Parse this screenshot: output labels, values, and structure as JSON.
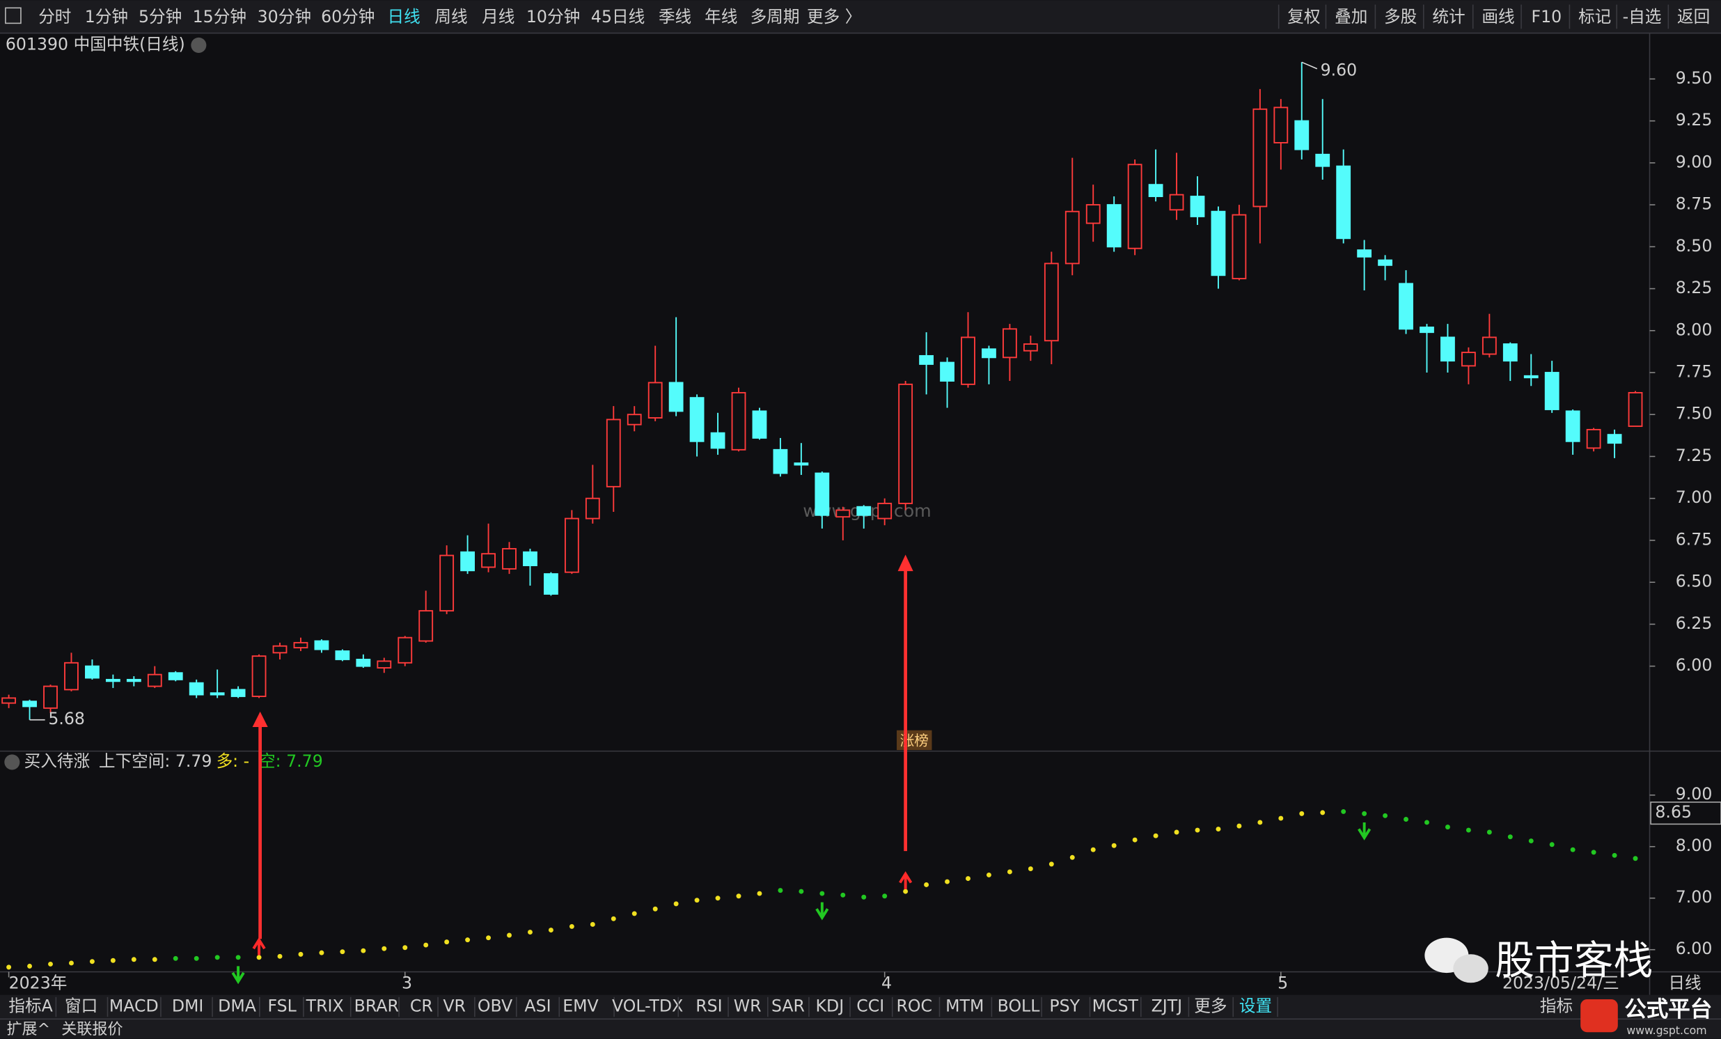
{
  "toolbar": {
    "left": [
      "分时",
      "1分钟",
      "5分钟",
      "15分钟",
      "30分钟",
      "60分钟",
      "日线",
      "周线",
      "月线",
      "10分钟",
      "45日线",
      "季线",
      "年线",
      "多周期",
      "更多 〉"
    ],
    "selected": "日线",
    "right": [
      "复权",
      "叠加",
      "多股",
      "统计",
      "画线",
      "F10",
      "标记",
      "-自选",
      "返回"
    ]
  },
  "header": {
    "title": "601390 中国中铁(日线)"
  },
  "watermark": "www.gspt.com",
  "tag": "涨榜",
  "chart_data": [
    {
      "type": "candlestick",
      "up_color": "#ff3b3b",
      "down_color": "#54fcfc",
      "high_label": "9.60",
      "low_label": "5.68",
      "categories": [
        "2023年",
        null,
        null,
        null,
        null,
        null,
        null,
        null,
        null,
        null,
        null,
        null,
        null,
        null,
        null,
        null,
        null,
        null,
        null,
        "3",
        null,
        null,
        null,
        null,
        null,
        null,
        null,
        null,
        null,
        null,
        null,
        null,
        null,
        null,
        null,
        null,
        null,
        null,
        null,
        null,
        null,
        null,
        "4",
        null,
        null,
        null,
        null,
        null,
        null,
        null,
        null,
        null,
        null,
        null,
        null,
        null,
        null,
        null,
        null,
        null,
        null,
        "5",
        null,
        null,
        null,
        null,
        null,
        null,
        null,
        null,
        null,
        null,
        null,
        null,
        null,
        null,
        null,
        null,
        null
      ],
      "open": [
        5.78,
        5.79,
        5.75,
        5.86,
        6.0,
        5.92,
        5.92,
        5.88,
        5.96,
        5.9,
        5.84,
        5.86,
        5.82,
        6.08,
        6.11,
        6.15,
        6.09,
        6.04,
        5.99,
        6.02,
        6.15,
        6.33,
        6.68,
        6.59,
        6.58,
        6.68,
        6.55,
        6.56,
        6.88,
        7.07,
        7.44,
        7.48,
        7.69,
        7.6,
        7.39,
        7.29,
        7.52,
        7.29,
        7.21,
        7.15,
        6.89,
        6.95,
        6.88,
        6.97,
        7.85,
        7.81,
        7.68,
        7.89,
        7.84,
        7.88,
        7.94,
        8.4,
        8.64,
        8.75,
        8.49,
        8.87,
        8.72,
        8.8,
        8.71,
        8.31,
        8.74,
        9.12,
        9.25,
        9.05,
        8.98,
        8.48,
        8.42,
        8.28,
        8.02,
        7.96,
        7.79,
        7.86,
        7.92,
        7.73,
        7.75,
        7.52,
        7.3,
        7.38,
        7.43
      ],
      "high": [
        5.83,
        5.8,
        5.89,
        6.08,
        6.04,
        5.95,
        5.94,
        6.0,
        5.97,
        5.92,
        5.98,
        5.88,
        6.07,
        6.14,
        6.17,
        6.16,
        6.1,
        6.07,
        6.05,
        6.18,
        6.45,
        6.72,
        6.78,
        6.85,
        6.74,
        6.7,
        6.56,
        6.93,
        7.2,
        7.55,
        7.55,
        7.91,
        8.08,
        7.62,
        7.51,
        7.66,
        7.54,
        7.36,
        7.33,
        7.16,
        6.95,
        6.96,
        7.0,
        7.7,
        7.99,
        7.84,
        8.11,
        7.91,
        8.04,
        7.97,
        8.47,
        9.03,
        8.87,
        8.8,
        9.02,
        9.08,
        9.06,
        8.92,
        8.74,
        8.75,
        9.44,
        9.38,
        9.6,
        9.38,
        9.08,
        8.54,
        8.45,
        8.36,
        8.04,
        8.04,
        7.9,
        8.1,
        7.93,
        7.86,
        7.82,
        7.53,
        7.42,
        7.41,
        7.64
      ],
      "low": [
        5.75,
        5.68,
        5.72,
        5.85,
        5.92,
        5.87,
        5.88,
        5.87,
        5.91,
        5.81,
        5.81,
        5.81,
        5.81,
        6.04,
        6.09,
        6.08,
        6.03,
        5.99,
        5.96,
        6.0,
        6.14,
        6.31,
        6.55,
        6.56,
        6.55,
        6.48,
        6.42,
        6.55,
        6.85,
        6.92,
        7.4,
        7.46,
        7.49,
        7.25,
        7.26,
        7.28,
        7.35,
        7.13,
        7.14,
        6.82,
        6.75,
        6.82,
        6.84,
        6.93,
        7.62,
        7.54,
        7.66,
        7.68,
        7.7,
        7.82,
        7.8,
        8.33,
        8.53,
        8.47,
        8.45,
        8.77,
        8.66,
        8.63,
        8.25,
        8.3,
        8.52,
        8.96,
        9.02,
        8.9,
        8.52,
        8.24,
        8.3,
        7.98,
        7.75,
        7.75,
        7.68,
        7.84,
        7.7,
        7.67,
        7.51,
        7.26,
        7.28,
        7.24,
        7.43
      ],
      "close": [
        5.81,
        5.76,
        5.88,
        6.02,
        5.93,
        5.91,
        5.91,
        5.95,
        5.92,
        5.83,
        5.83,
        5.82,
        6.06,
        6.12,
        6.14,
        6.1,
        6.04,
        6.0,
        6.03,
        6.17,
        6.33,
        6.66,
        6.57,
        6.67,
        6.7,
        6.6,
        6.43,
        6.88,
        7.0,
        7.47,
        7.5,
        7.69,
        7.52,
        7.34,
        7.3,
        7.63,
        7.36,
        7.15,
        7.2,
        6.9,
        6.93,
        6.9,
        6.97,
        7.68,
        7.8,
        7.7,
        7.96,
        7.84,
        8.01,
        7.92,
        8.4,
        8.71,
        8.75,
        8.5,
        8.99,
        8.8,
        8.81,
        8.68,
        8.33,
        8.69,
        9.32,
        9.33,
        9.08,
        8.98,
        8.55,
        8.44,
        8.39,
        8.01,
        7.99,
        7.82,
        7.87,
        7.96,
        7.82,
        7.72,
        7.53,
        7.34,
        7.41,
        7.33,
        7.63
      ],
      "ylim": [
        5.5,
        9.76
      ],
      "yticks": [
        {
          "value": 6,
          "label": "6.00"
        },
        {
          "value": 6.25,
          "label": "6.25"
        },
        {
          "value": 6.5,
          "label": "6.50"
        },
        {
          "value": 6.75,
          "label": "6.75"
        },
        {
          "value": 7,
          "label": "7.00"
        },
        {
          "value": 7.25,
          "label": "7.25"
        },
        {
          "value": 7.5,
          "label": "7.50"
        },
        {
          "value": 7.75,
          "label": "7.75"
        },
        {
          "value": 8,
          "label": "8.00"
        },
        {
          "value": 8.25,
          "label": "8.25"
        },
        {
          "value": 8.5,
          "label": "8.50"
        },
        {
          "value": 8.75,
          "label": "8.75"
        },
        {
          "value": 9,
          "label": "9.00"
        },
        {
          "value": 9.25,
          "label": "9.25"
        },
        {
          "value": 9.5,
          "label": "9.50"
        }
      ]
    },
    {
      "type": "dots",
      "title": "买入待涨",
      "space": "上下空间: 7.79",
      "long": "多: -",
      "short": "空: 7.79",
      "values": [
        5.66,
        5.68,
        5.72,
        5.74,
        5.77,
        5.79,
        5.81,
        5.81,
        5.83,
        5.83,
        5.85,
        5.85,
        5.85,
        5.87,
        5.91,
        5.94,
        5.96,
        5.98,
        6.02,
        6.04,
        6.09,
        6.15,
        6.19,
        6.23,
        6.28,
        6.34,
        6.38,
        6.45,
        6.49,
        6.6,
        6.7,
        6.79,
        6.89,
        6.96,
        7.0,
        7.04,
        7.09,
        7.15,
        7.13,
        7.09,
        7.06,
        7.02,
        7.04,
        7.13,
        7.26,
        7.32,
        7.38,
        7.45,
        7.51,
        7.57,
        7.66,
        7.79,
        7.94,
        8.02,
        8.13,
        8.21,
        8.28,
        8.32,
        8.34,
        8.4,
        8.47,
        8.55,
        8.64,
        8.66,
        8.68,
        8.64,
        8.6,
        8.53,
        8.47,
        8.38,
        8.32,
        8.28,
        8.19,
        8.11,
        8.04,
        7.94,
        7.89,
        7.83,
        7.77
      ],
      "colors": [
        "#f0e020",
        "#f0e020",
        "#f0e020",
        "#f0e020",
        "#f0e020",
        "#f0e020",
        "#f0e020",
        "#f0e020",
        "#22c822",
        "#22c822",
        "#22c822",
        "#22c822",
        "#f0e020",
        "#f0e020",
        "#f0e020",
        "#f0e020",
        "#f0e020",
        "#f0e020",
        "#f0e020",
        "#f0e020",
        "#f0e020",
        "#f0e020",
        "#f0e020",
        "#f0e020",
        "#f0e020",
        "#f0e020",
        "#f0e020",
        "#f0e020",
        "#f0e020",
        "#f0e020",
        "#f0e020",
        "#f0e020",
        "#f0e020",
        "#f0e020",
        "#f0e020",
        "#f0e020",
        "#f0e020",
        "#22c822",
        "#22c822",
        "#22c822",
        "#22c822",
        "#22c822",
        "#22c822",
        "#f0e020",
        "#f0e020",
        "#f0e020",
        "#f0e020",
        "#f0e020",
        "#f0e020",
        "#f0e020",
        "#f0e020",
        "#f0e020",
        "#f0e020",
        "#f0e020",
        "#f0e020",
        "#f0e020",
        "#f0e020",
        "#f0e020",
        "#f0e020",
        "#f0e020",
        "#f0e020",
        "#f0e020",
        "#f0e020",
        "#f0e020",
        "#22c822",
        "#22c822",
        "#22c822",
        "#22c822",
        "#22c822",
        "#22c822",
        "#22c822",
        "#22c822",
        "#22c822",
        "#22c822",
        "#22c822",
        "#22c822",
        "#22c822",
        "#22c822",
        "#22c822"
      ],
      "buy_signals": [
        12,
        43
      ],
      "sell_signals": [
        11,
        39,
        65
      ],
      "ylim": [
        5.57,
        9.81
      ],
      "yticks": [
        {
          "value": 6,
          "label": "6.00"
        },
        {
          "value": 7,
          "label": "7.00"
        },
        {
          "value": 8,
          "label": "8.00"
        },
        {
          "value": 9,
          "label": "9.00"
        }
      ],
      "current": {
        "value": 8.65,
        "label": "8.65"
      }
    }
  ],
  "date_label": "2023/05/24/三",
  "period_label": "日线",
  "tabs": {
    "items": [
      "指标A",
      "窗口",
      "MACD",
      "DMI",
      "DMA",
      "FSL",
      "TRIX",
      "BRAR",
      "CR",
      "VR",
      "OBV",
      "ASI",
      "EMV",
      "VOL-TDX",
      "RSI",
      "WR",
      "SAR",
      "KDJ",
      "CCI",
      "ROC",
      "MTM",
      "BOLL",
      "PSY",
      "MCST",
      "ZJTJ",
      "更多",
      "设置"
    ],
    "right": "指标"
  },
  "footer": [
    "扩展^",
    "关联报价"
  ],
  "overlay": {
    "brand": "股市客栈",
    "platform": "公式平台",
    "site": "www.gspt.com"
  }
}
